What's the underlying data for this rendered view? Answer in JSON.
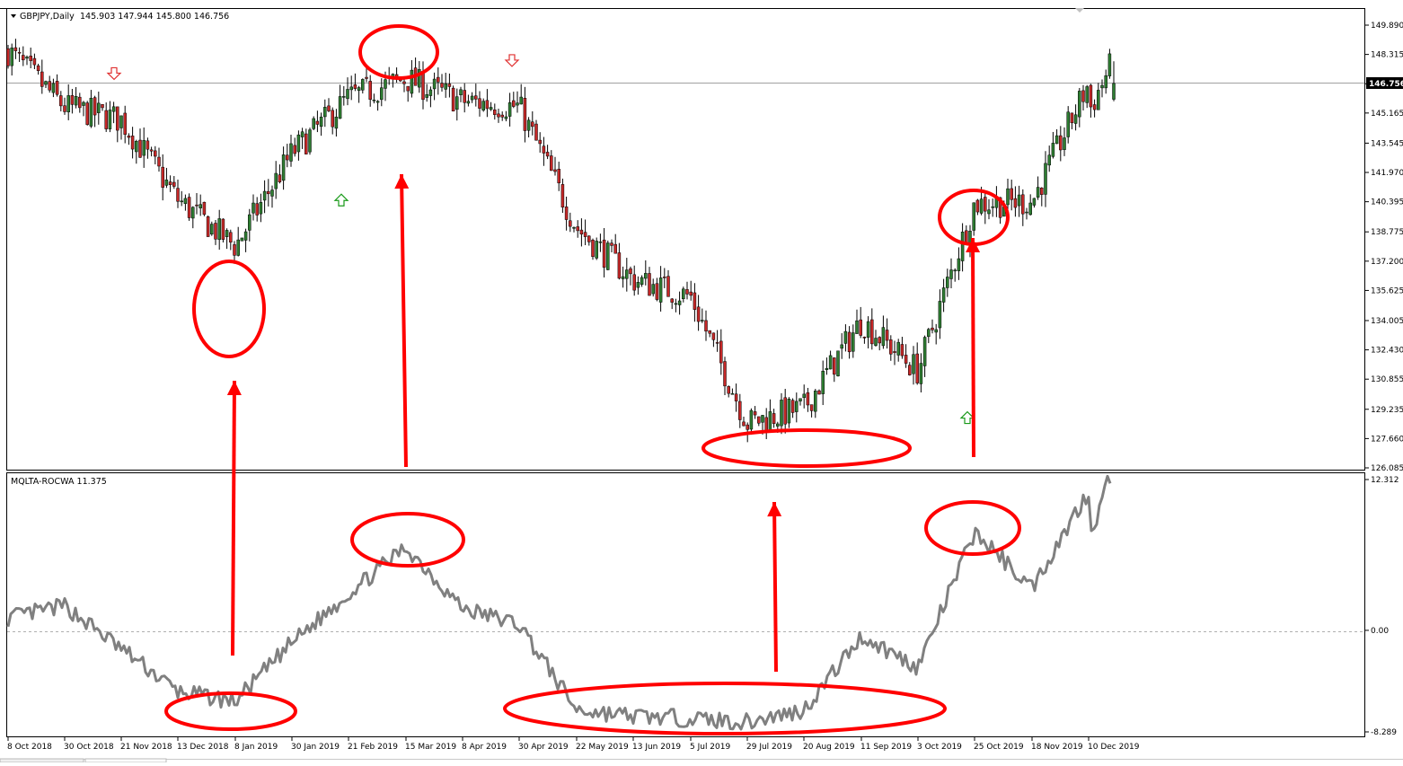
{
  "main_panel": {
    "caption": "GBPJPY,Daily",
    "ohlc": "145.903 147.944 145.800 146.756",
    "current_price": "146.756",
    "y_ticks": [
      "149.890",
      "148.315",
      "146.740",
      "145.165",
      "143.545",
      "141.970",
      "140.395",
      "138.775",
      "137.200",
      "135.625",
      "134.005",
      "132.430",
      "130.855",
      "129.235",
      "127.660",
      "126.085"
    ]
  },
  "indicator_panel": {
    "caption": "MQLTA-ROCWA 11.375",
    "y_ticks": [
      "12.312",
      "0.00",
      "-8.289"
    ]
  },
  "x_axis": {
    "ticks": [
      "8 Oct 2018",
      "30 Oct 2018",
      "21 Nov 2018",
      "13 Dec 2018",
      "8 Jan 2019",
      "30 Jan 2019",
      "21 Feb 2019",
      "15 Mar 2019",
      "8 Apr 2019",
      "30 Apr 2019",
      "22 May 2019",
      "13 Jun 2019",
      "5 Jul 2019",
      "29 Jul 2019",
      "20 Aug 2019",
      "11 Sep 2019",
      "3 Oct 2019",
      "25 Oct 2019",
      "18 Nov 2019",
      "10 Dec 2019"
    ]
  },
  "colors": {
    "up_candle": "#2e7d32",
    "down_candle": "#c62828",
    "indicator_line": "#808080",
    "annotation": "#ff0000",
    "signal_buy": "#1a9a1a",
    "signal_sell": "#e03030"
  },
  "chart_data": [
    {
      "type": "candlestick",
      "symbol": "GBPJPY",
      "timeframe": "Daily",
      "ylim": [
        126.085,
        150.6
      ],
      "close_path": [
        [
          "8 Oct 2018",
          148.5
        ],
        [
          "30 Oct 2018",
          145.5
        ],
        [
          "21 Nov 2018",
          144.8
        ],
        [
          "13 Dec 2018",
          140.5
        ],
        [
          "8 Jan 2019",
          138.0
        ],
        [
          "30 Jan 2019",
          143.0
        ],
        [
          "21 Feb 2019",
          146.0
        ],
        [
          "15 Mar 2019",
          147.0
        ],
        [
          "8 Apr 2019",
          145.8
        ],
        [
          "30 Apr 2019",
          145.5
        ],
        [
          "22 May 2019",
          139.0
        ],
        [
          "13 Jun 2019",
          136.2
        ],
        [
          "5 Jul 2019",
          135.3
        ],
        [
          "29 Jul 2019",
          128.5
        ],
        [
          "20 Aug 2019",
          129.3
        ],
        [
          "11 Sep 2019",
          134.0
        ],
        [
          "3 Oct 2019",
          131.3
        ],
        [
          "25 Oct 2019",
          140.3
        ],
        [
          "18 Nov 2019",
          140.4
        ],
        [
          "10 Dec 2019",
          146.756
        ]
      ],
      "signals": [
        {
          "kind": "sell",
          "date": "21 Nov 2018"
        },
        {
          "kind": "buy",
          "date": "30 Jan 2019"
        },
        {
          "kind": "sell",
          "date": "30 Apr 2019"
        },
        {
          "kind": "buy",
          "date": "3 Oct 2019"
        }
      ]
    },
    {
      "type": "line",
      "series": [
        {
          "name": "MQLTA-ROCWA",
          "last_value": 11.375
        }
      ],
      "ylim": [
        -8.289,
        12.312
      ],
      "path": [
        [
          "8 Oct 2018",
          1.0
        ],
        [
          "30 Oct 2018",
          2.0
        ],
        [
          "21 Nov 2018",
          -1.5
        ],
        [
          "13 Dec 2018",
          -5.0
        ],
        [
          "8 Jan 2019",
          -5.8
        ],
        [
          "30 Jan 2019",
          -1.0
        ],
        [
          "21 Feb 2019",
          3.0
        ],
        [
          "15 Mar 2019",
          6.8
        ],
        [
          "8 Apr 2019",
          1.8
        ],
        [
          "30 Apr 2019",
          0.5
        ],
        [
          "22 May 2019",
          -6.5
        ],
        [
          "13 Jun 2019",
          -7.0
        ],
        [
          "5 Jul 2019",
          -7.2
        ],
        [
          "29 Jul 2019",
          -7.5
        ],
        [
          "20 Aug 2019",
          -6.5
        ],
        [
          "11 Sep 2019",
          -0.5
        ],
        [
          "3 Oct 2019",
          -3.0
        ],
        [
          "25 Oct 2019",
          8.0
        ],
        [
          "18 Nov 2019",
          3.5
        ],
        [
          "10 Dec 2019",
          11.375
        ]
      ]
    }
  ]
}
